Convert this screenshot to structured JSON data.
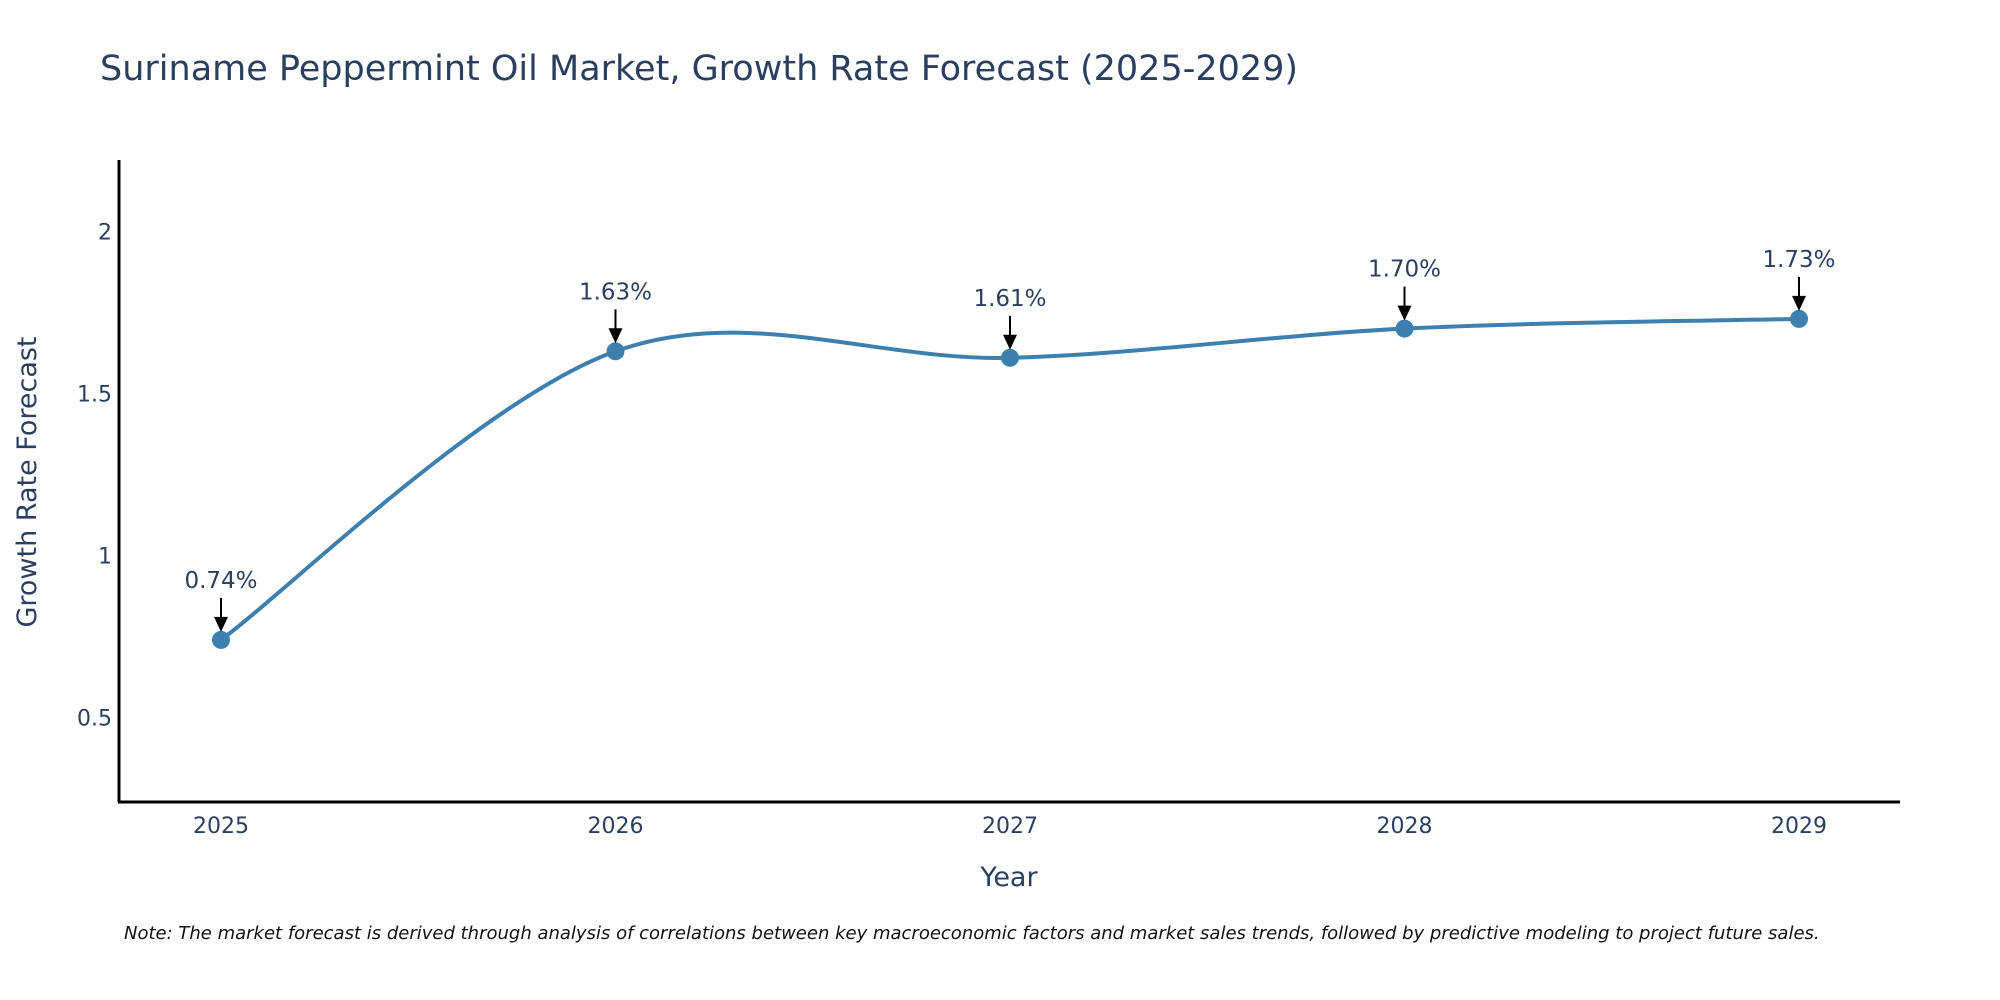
{
  "chart_data": {
    "type": "line",
    "title": "Suriname Peppermint Oil Market, Growth Rate Forecast (2025-2029)",
    "xlabel": "Year",
    "ylabel": "Growth Rate Forecast",
    "categories": [
      "2025",
      "2026",
      "2027",
      "2028",
      "2029"
    ],
    "series": [
      {
        "name": "Growth Rate Forecast",
        "values": [
          0.74,
          1.63,
          1.61,
          1.7,
          1.73
        ],
        "labels": [
          "0.74%",
          "1.63%",
          "1.61%",
          "1.70%",
          "1.73%"
        ],
        "color": "#3d7fae"
      }
    ],
    "yticks": [
      0.5,
      1,
      1.5,
      2
    ],
    "ytick_labels": [
      "0.5",
      "1",
      "1.5",
      "2"
    ],
    "ylim": [
      0.24,
      2.22
    ],
    "grid": false,
    "legend": "none"
  },
  "note": "Note: The market forecast is derived through analysis of correlations between key macroeconomic factors and market sales trends, followed by predictive modeling to project future sales."
}
